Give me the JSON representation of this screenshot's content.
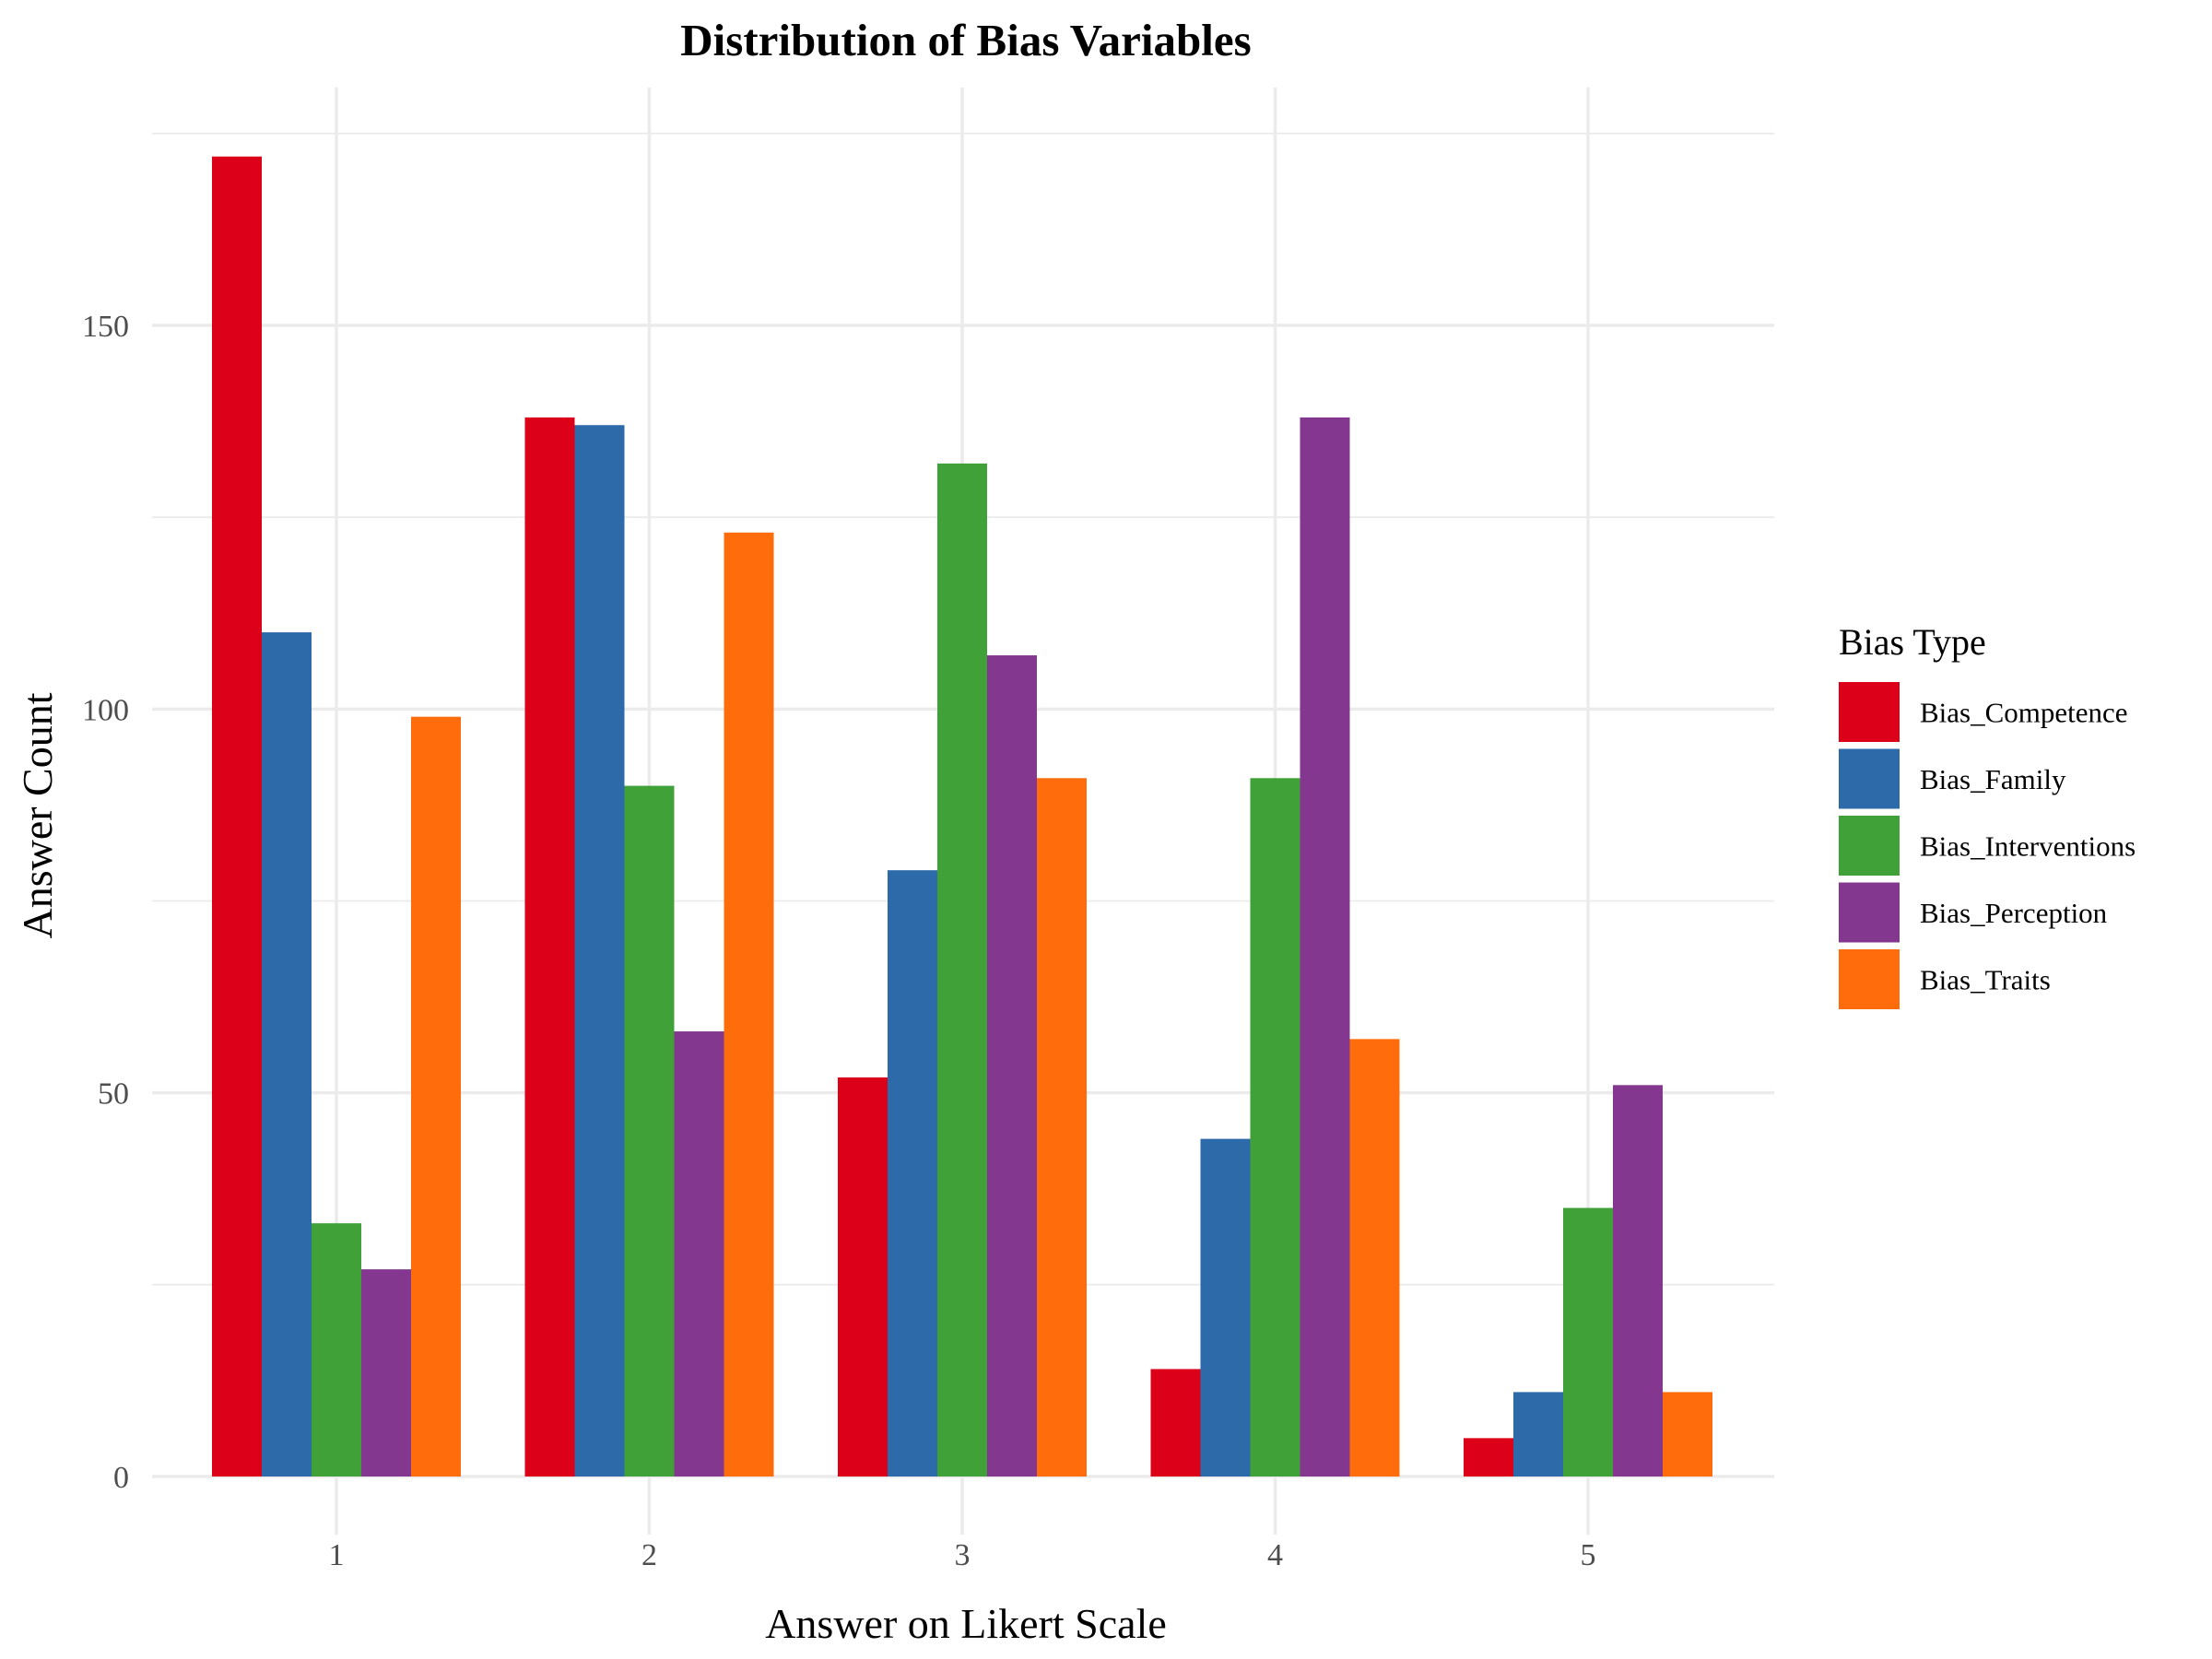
{
  "chart_data": {
    "type": "bar",
    "title": "Distribution of Bias Variables",
    "xlabel": "Answer on Likert Scale",
    "ylabel": "Answer Count",
    "categories": [
      "1",
      "2",
      "3",
      "4",
      "5"
    ],
    "yticks": [
      0,
      50,
      100,
      150
    ],
    "ylim": [
      0,
      175
    ],
    "grid": true,
    "legend": {
      "title": "Bias Type",
      "placement": "right"
    },
    "series": [
      {
        "name": "Bias_Competence",
        "color": "#DC0019",
        "values": [
          172,
          138,
          52,
          14,
          5
        ]
      },
      {
        "name": "Bias_Family",
        "color": "#2D6AAA",
        "values": [
          110,
          137,
          79,
          44,
          11
        ]
      },
      {
        "name": "Bias_Interventions",
        "color": "#40A139",
        "values": [
          33,
          90,
          132,
          91,
          35
        ]
      },
      {
        "name": "Bias_Perception",
        "color": "#83378F",
        "values": [
          27,
          58,
          107,
          138,
          51
        ]
      },
      {
        "name": "Bias_Traits",
        "color": "#FF6C0B",
        "values": [
          99,
          123,
          91,
          57,
          11
        ]
      }
    ]
  }
}
